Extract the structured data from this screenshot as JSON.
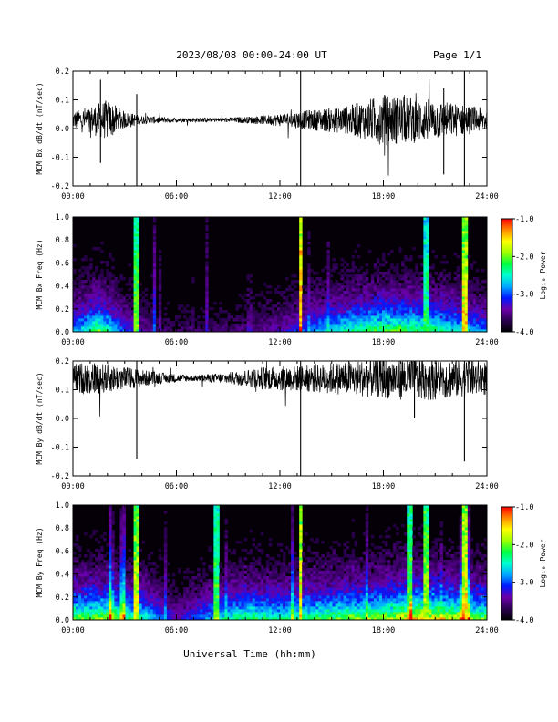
{
  "header": {
    "date_range": "2023/08/08  00:00-24:00 UT",
    "page": "Page 1/1"
  },
  "footer": {
    "xlabel": "Universal Time (hh:mm)"
  },
  "colorbar": {
    "label": "Log₁₀ Power",
    "ticks": [
      "-1.0",
      "-2.0",
      "-3.0",
      "-4.0"
    ],
    "range": [
      -4.0,
      -1.0
    ],
    "colors": [
      "#000000",
      "#2b0050",
      "#6a00a8",
      "#0018ff",
      "#00a8ff",
      "#00ffd0",
      "#00ff40",
      "#9cff00",
      "#ffff00",
      "#ff8c00",
      "#ff0000"
    ]
  },
  "colors": {
    "trace": "#000000",
    "background_dark": "#050008"
  },
  "chart_data": [
    {
      "type": "line",
      "ylabel": "MCM Bx dB/dt (nT/sec)",
      "xlim_hours": [
        0,
        24
      ],
      "ylim": [
        -0.2,
        0.2
      ],
      "xticks": [
        "00:00",
        "06:00",
        "12:00",
        "18:00",
        "24:00"
      ],
      "yticks": [
        "0.2",
        "0.1",
        "0.0",
        "-0.1",
        "-0.2"
      ],
      "baseline": 0.03,
      "envelope": [
        {
          "x": 0.0,
          "amp": 0.03
        },
        {
          "x": 1.0,
          "amp": 0.05
        },
        {
          "x": 2.0,
          "amp": 0.07
        },
        {
          "x": 3.0,
          "amp": 0.03
        },
        {
          "x": 4.0,
          "amp": 0.015
        },
        {
          "x": 6.0,
          "amp": 0.008
        },
        {
          "x": 9.0,
          "amp": 0.008
        },
        {
          "x": 11.0,
          "amp": 0.015
        },
        {
          "x": 13.0,
          "amp": 0.03
        },
        {
          "x": 16.0,
          "amp": 0.05
        },
        {
          "x": 18.0,
          "amp": 0.09
        },
        {
          "x": 20.0,
          "amp": 0.08
        },
        {
          "x": 22.0,
          "amp": 0.06
        },
        {
          "x": 24.0,
          "amp": 0.04
        }
      ],
      "spikes": [
        {
          "x": 3.7,
          "min": -0.2,
          "max": 0.12
        },
        {
          "x": 13.2,
          "min": -0.2,
          "max": 0.2
        },
        {
          "x": 22.7,
          "min": -0.2,
          "max": 0.2
        },
        {
          "x": 21.5,
          "min": -0.16,
          "max": 0.14
        },
        {
          "x": 1.6,
          "min": -0.12,
          "max": 0.17
        }
      ]
    },
    {
      "type": "heatmap",
      "ylabel": "MCM Bx Freq (Hz)",
      "xlim_hours": [
        0,
        24
      ],
      "ylim": [
        0.0,
        1.0
      ],
      "xticks": [
        "00:00",
        "06:00",
        "12:00",
        "18:00",
        "24:00"
      ],
      "yticks": [
        "1.0",
        "0.8",
        "0.6",
        "0.4",
        "0.2",
        "0.0"
      ],
      "activity": [
        {
          "x": 0.0,
          "level": 0.35
        },
        {
          "x": 1.5,
          "level": 0.6
        },
        {
          "x": 3.0,
          "level": 0.3
        },
        {
          "x": 5.0,
          "level": 0.1
        },
        {
          "x": 9.0,
          "level": 0.12
        },
        {
          "x": 12.0,
          "level": 0.2
        },
        {
          "x": 15.0,
          "level": 0.45
        },
        {
          "x": 18.0,
          "level": 0.6
        },
        {
          "x": 21.0,
          "level": 0.55
        },
        {
          "x": 24.0,
          "level": 0.35
        }
      ],
      "stripes": [
        {
          "x": 3.7,
          "level": 0.75
        },
        {
          "x": 13.2,
          "level": 1.0
        },
        {
          "x": 20.5,
          "level": 0.65
        },
        {
          "x": 22.7,
          "level": 0.9
        }
      ]
    },
    {
      "type": "line",
      "ylabel": "MCM By dB/dt (nT/sec)",
      "xlim_hours": [
        0,
        24
      ],
      "ylim": [
        -0.2,
        0.2
      ],
      "xticks": [
        "00:00",
        "06:00",
        "12:00",
        "18:00",
        "24:00"
      ],
      "yticks": [
        "0.2",
        "0.1",
        "0.0",
        "-0.1",
        "-0.2"
      ],
      "baseline": 0.14,
      "envelope": [
        {
          "x": 0.0,
          "amp": 0.05
        },
        {
          "x": 1.0,
          "amp": 0.06
        },
        {
          "x": 3.0,
          "amp": 0.04
        },
        {
          "x": 5.0,
          "amp": 0.02
        },
        {
          "x": 7.0,
          "amp": 0.01
        },
        {
          "x": 9.0,
          "amp": 0.02
        },
        {
          "x": 11.0,
          "amp": 0.04
        },
        {
          "x": 14.0,
          "amp": 0.05
        },
        {
          "x": 16.0,
          "amp": 0.06
        },
        {
          "x": 18.0,
          "amp": 0.07
        },
        {
          "x": 20.0,
          "amp": 0.08
        },
        {
          "x": 22.0,
          "amp": 0.07
        },
        {
          "x": 24.0,
          "amp": 0.06
        }
      ],
      "spikes": [
        {
          "x": 3.7,
          "min": -0.14,
          "max": 0.2
        },
        {
          "x": 13.2,
          "min": -0.2,
          "max": 0.2
        },
        {
          "x": 22.7,
          "min": -0.15,
          "max": 0.2
        },
        {
          "x": 19.8,
          "min": 0.0,
          "max": 0.2
        }
      ]
    },
    {
      "type": "heatmap",
      "ylabel": "MCM By Freq (Hz)",
      "xlim_hours": [
        0,
        24
      ],
      "ylim": [
        0.0,
        1.0
      ],
      "xticks": [
        "00:00",
        "06:00",
        "12:00",
        "18:00",
        "24:00"
      ],
      "yticks": [
        "1.0",
        "0.8",
        "0.6",
        "0.4",
        "0.2",
        "0.0"
      ],
      "activity": [
        {
          "x": 0.0,
          "level": 0.6
        },
        {
          "x": 2.0,
          "level": 0.65
        },
        {
          "x": 4.0,
          "level": 0.5
        },
        {
          "x": 6.0,
          "level": 0.2
        },
        {
          "x": 8.0,
          "level": 0.4
        },
        {
          "x": 10.0,
          "level": 0.55
        },
        {
          "x": 12.0,
          "level": 0.5
        },
        {
          "x": 15.0,
          "level": 0.6
        },
        {
          "x": 18.0,
          "level": 0.65
        },
        {
          "x": 20.0,
          "level": 0.8
        },
        {
          "x": 22.0,
          "level": 0.7
        },
        {
          "x": 24.0,
          "level": 0.6
        }
      ],
      "stripes": [
        {
          "x": 3.7,
          "level": 0.85
        },
        {
          "x": 8.3,
          "level": 0.7
        },
        {
          "x": 13.2,
          "level": 0.9
        },
        {
          "x": 19.5,
          "level": 0.75
        },
        {
          "x": 20.5,
          "level": 0.8
        },
        {
          "x": 22.7,
          "level": 0.9
        }
      ]
    }
  ]
}
